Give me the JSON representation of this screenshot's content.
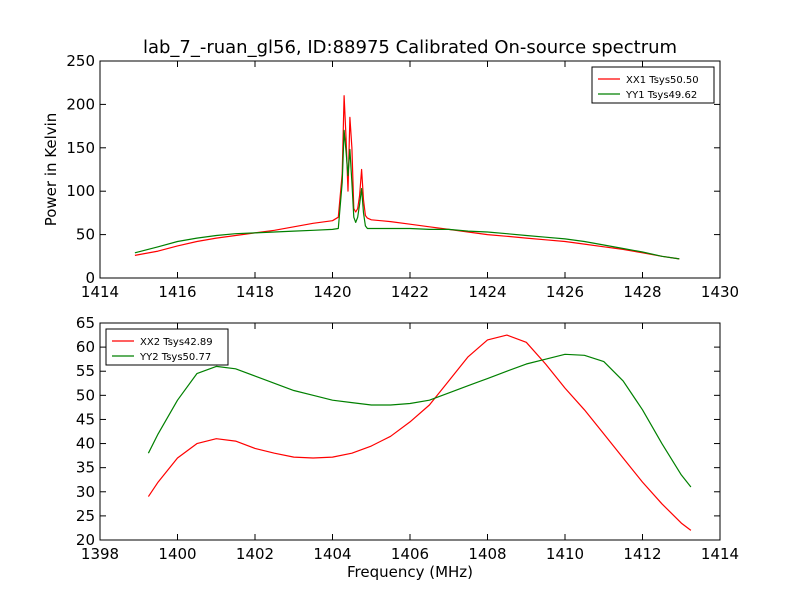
{
  "title": "lab_7_-ruan_gl56, ID:88975 Calibrated On-source spectrum",
  "colors": {
    "xx": "#ff0000",
    "yy": "#008000"
  },
  "chart_data": [
    {
      "type": "line",
      "title": "lab_7_-ruan_gl56, ID:88975 Calibrated On-source spectrum",
      "xlabel": "",
      "ylabel": "Power in Kelvin",
      "xlim": [
        1414,
        1430
      ],
      "ylim": [
        0,
        250
      ],
      "x_ticks": [
        1414,
        1416,
        1418,
        1420,
        1422,
        1424,
        1426,
        1428,
        1430
      ],
      "y_ticks": [
        0,
        50,
        100,
        150,
        200,
        250
      ],
      "legend_position": "top-right",
      "grid": false,
      "series": [
        {
          "name": "XX1 Tsys50.50",
          "color": "#ff0000",
          "x": [
            1414.9,
            1415.5,
            1416.0,
            1416.5,
            1417.0,
            1417.5,
            1418.0,
            1418.5,
            1419.0,
            1419.5,
            1420.0,
            1420.15,
            1420.25,
            1420.3,
            1420.35,
            1420.4,
            1420.45,
            1420.5,
            1420.55,
            1420.6,
            1420.65,
            1420.7,
            1420.75,
            1420.8,
            1420.85,
            1420.9,
            1421.0,
            1421.5,
            1422.0,
            1422.5,
            1423.0,
            1423.5,
            1424.0,
            1424.5,
            1425.0,
            1425.5,
            1426.0,
            1426.5,
            1427.0,
            1427.5,
            1428.0,
            1428.5,
            1428.95
          ],
          "y": [
            26,
            31,
            37,
            42,
            46,
            49,
            52,
            55,
            59,
            63,
            66,
            70,
            120,
            210,
            160,
            100,
            185,
            150,
            80,
            76,
            80,
            95,
            125,
            90,
            72,
            69,
            67,
            65,
            62,
            59,
            56,
            53,
            50,
            48,
            46,
            44,
            42,
            39,
            36,
            33,
            29,
            25,
            22
          ]
        },
        {
          "name": "YY1 Tsys49.62",
          "color": "#008000",
          "x": [
            1414.9,
            1415.5,
            1416.0,
            1416.5,
            1417.0,
            1417.5,
            1418.0,
            1418.5,
            1419.0,
            1419.5,
            1420.0,
            1420.15,
            1420.25,
            1420.3,
            1420.35,
            1420.4,
            1420.45,
            1420.5,
            1420.55,
            1420.6,
            1420.65,
            1420.7,
            1420.75,
            1420.8,
            1420.85,
            1420.9,
            1421.0,
            1421.5,
            1422.0,
            1422.5,
            1423.0,
            1423.5,
            1424.0,
            1424.5,
            1425.0,
            1425.5,
            1426.0,
            1426.5,
            1427.0,
            1427.5,
            1428.0,
            1428.5,
            1428.95
          ],
          "y": [
            29,
            36,
            42,
            46,
            49,
            51,
            52,
            53,
            54,
            55,
            56,
            57,
            110,
            170,
            145,
            118,
            148,
            110,
            70,
            64,
            70,
            85,
            103,
            75,
            60,
            57,
            57,
            57,
            57,
            56,
            56,
            54,
            53,
            51,
            49,
            47,
            45,
            42,
            38,
            34,
            30,
            25,
            22
          ]
        }
      ]
    },
    {
      "type": "line",
      "title": "",
      "xlabel": "Frequency (MHz)",
      "ylabel": "",
      "xlim": [
        1398,
        1414
      ],
      "ylim": [
        20,
        65
      ],
      "x_ticks": [
        1398,
        1400,
        1402,
        1404,
        1406,
        1408,
        1410,
        1412,
        1414
      ],
      "y_ticks": [
        20,
        25,
        30,
        35,
        40,
        45,
        50,
        55,
        60,
        65
      ],
      "legend_position": "top-left",
      "grid": false,
      "series": [
        {
          "name": "XX2 Tsys42.89",
          "color": "#ff0000",
          "x": [
            1399.25,
            1399.5,
            1400.0,
            1400.5,
            1401.0,
            1401.5,
            1402.0,
            1402.5,
            1403.0,
            1403.5,
            1404.0,
            1404.5,
            1405.0,
            1405.5,
            1406.0,
            1406.5,
            1407.0,
            1407.5,
            1408.0,
            1408.5,
            1409.0,
            1409.5,
            1410.0,
            1410.5,
            1411.0,
            1411.5,
            1412.0,
            1412.5,
            1413.0,
            1413.25
          ],
          "y": [
            29,
            32,
            37,
            40,
            41,
            40.5,
            39,
            38,
            37.2,
            37,
            37.2,
            38,
            39.5,
            41.5,
            44.5,
            48,
            53,
            58,
            61.5,
            62.5,
            61,
            56.5,
            51.5,
            47,
            42,
            37,
            32,
            27.5,
            23.5,
            22
          ]
        },
        {
          "name": "YY2 Tsys50.77",
          "color": "#008000",
          "x": [
            1399.25,
            1399.5,
            1400.0,
            1400.5,
            1401.0,
            1401.5,
            1402.0,
            1402.5,
            1403.0,
            1403.5,
            1404.0,
            1404.5,
            1405.0,
            1405.5,
            1406.0,
            1406.5,
            1407.0,
            1407.5,
            1408.0,
            1408.5,
            1409.0,
            1409.5,
            1410.0,
            1410.5,
            1411.0,
            1411.5,
            1412.0,
            1412.5,
            1413.0,
            1413.25
          ],
          "y": [
            38,
            42,
            49,
            54.5,
            56,
            55.5,
            54,
            52.5,
            51,
            50,
            49,
            48.5,
            48,
            48,
            48.3,
            49,
            50.5,
            52,
            53.5,
            55,
            56.5,
            57.5,
            58.5,
            58.3,
            57,
            53,
            47,
            40,
            33.5,
            31
          ]
        }
      ]
    }
  ]
}
